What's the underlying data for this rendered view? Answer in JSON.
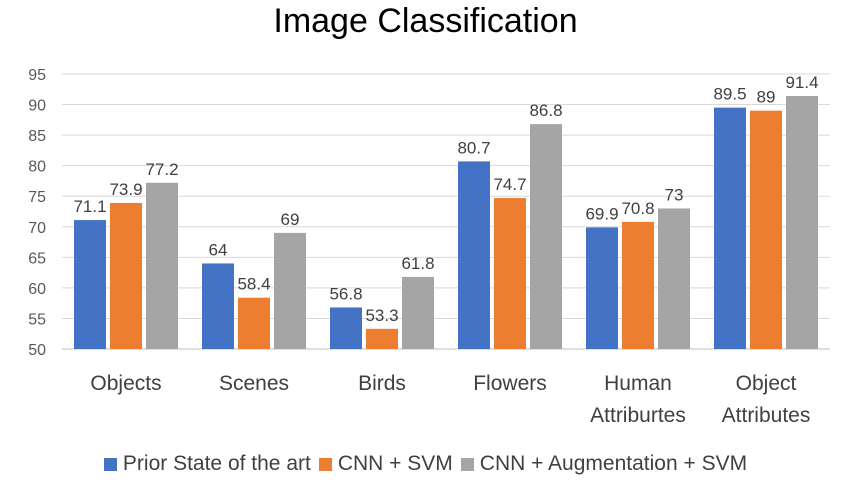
{
  "chart_data": {
    "type": "bar",
    "title": "Image Classification",
    "categories": [
      [
        "Objects"
      ],
      [
        "Scenes"
      ],
      [
        "Birds"
      ],
      [
        "Flowers"
      ],
      [
        "Human",
        "Attriburtes"
      ],
      [
        "Object",
        "Attributes"
      ]
    ],
    "series": [
      {
        "name": "Prior State of the art",
        "color": "#4472C4",
        "values": [
          71.1,
          64,
          56.8,
          80.7,
          69.9,
          89.5
        ]
      },
      {
        "name": "CNN + SVM",
        "color": "#ED7D31",
        "values": [
          73.9,
          58.4,
          53.3,
          74.7,
          70.8,
          89
        ]
      },
      {
        "name": "CNN + Augmentation + SVM",
        "color": "#A5A5A5",
        "values": [
          77.2,
          69,
          61.8,
          86.8,
          73,
          91.4
        ]
      }
    ],
    "ylim": [
      50,
      95
    ],
    "yticks": [
      50,
      55,
      60,
      65,
      70,
      75,
      80,
      85,
      90,
      95
    ],
    "grid": true,
    "legend_position": "bottom"
  }
}
